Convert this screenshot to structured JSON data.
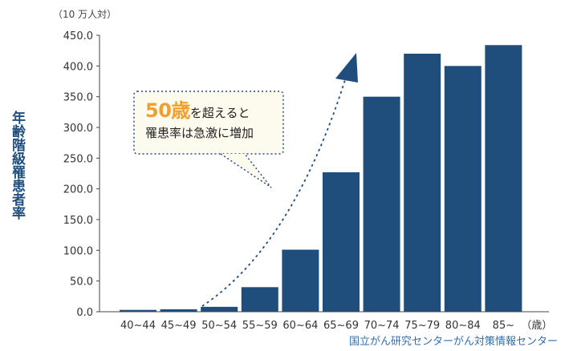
{
  "chart_data": {
    "type": "bar",
    "title": "",
    "unit_label": "（10 万人対）",
    "ylabel": "年齢階級罹患者率",
    "xlabel": "",
    "x_unit": "（歳）",
    "ylim": [
      0,
      450
    ],
    "yticks": [
      "450.0",
      "400.0",
      "350.0",
      "300.0",
      "250.0",
      "200.0",
      "150.0",
      "100.0",
      "50.0",
      "0.0"
    ],
    "categories": [
      "40~44",
      "45~49",
      "50~54",
      "55~59",
      "60~64",
      "65~69",
      "70~74",
      "75~79",
      "80~84",
      "85~"
    ],
    "values": [
      3,
      4,
      8,
      40,
      101,
      227,
      350,
      420,
      400,
      434
    ],
    "bar_color": "#1f4e7c"
  },
  "callout": {
    "highlight": "50歳",
    "line1_rest": "を超えると",
    "line2": "罹患率は急激に増加",
    "highlight_color": "#f0a030",
    "background": "#fdfbee"
  },
  "source": "国立がん研究センターがん対策情報センター"
}
